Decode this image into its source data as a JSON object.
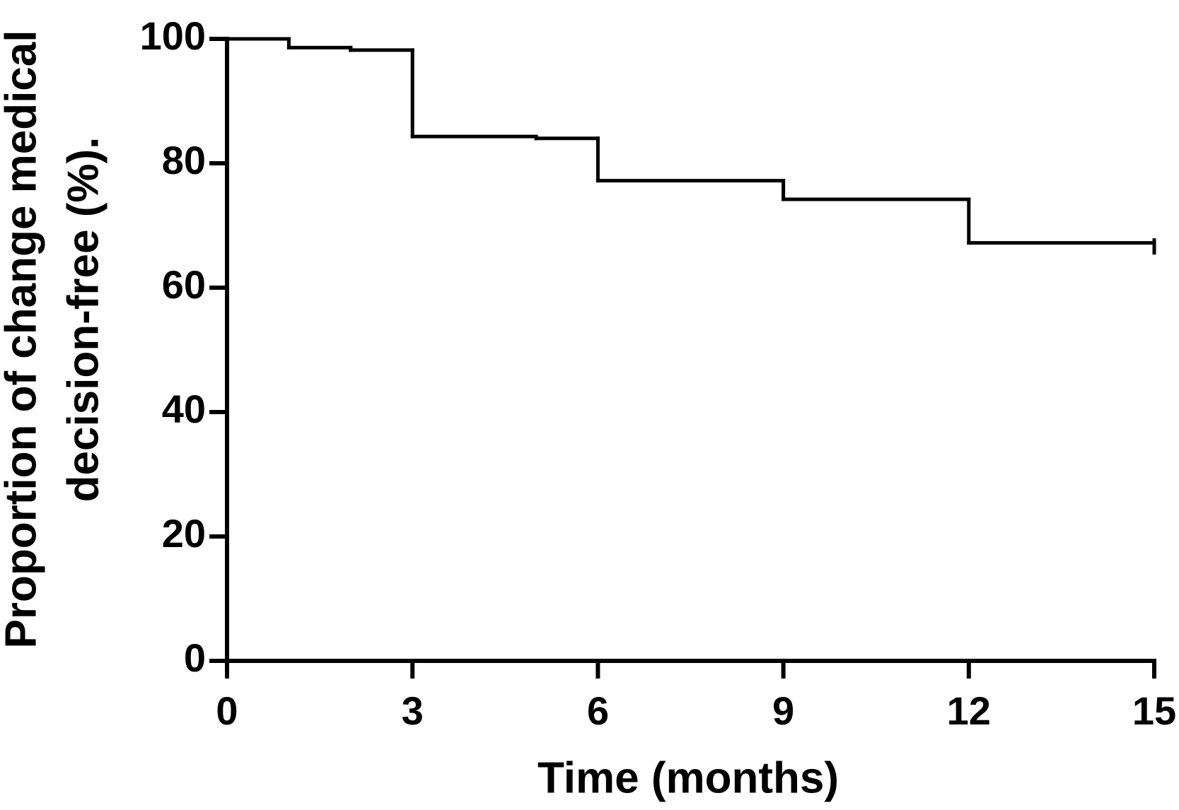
{
  "chart_data": {
    "type": "line",
    "step": true,
    "x_label": "Time (months)",
    "y_label": [
      "Proportion of change medical",
      "decision-free (%)."
    ],
    "x": [
      0,
      1,
      2,
      3,
      5,
      6,
      9,
      12,
      15
    ],
    "values": [
      100,
      98.6,
      98.2,
      84.3,
      84,
      77.2,
      74.2,
      67.2,
      67.2
    ],
    "color": "#000000",
    "xlim": [
      0,
      15
    ],
    "xticks": [
      0,
      3,
      6,
      9,
      12,
      15
    ],
    "ylim": [
      0,
      100
    ],
    "yticks": [
      0,
      20,
      40,
      60,
      80,
      100
    ]
  }
}
